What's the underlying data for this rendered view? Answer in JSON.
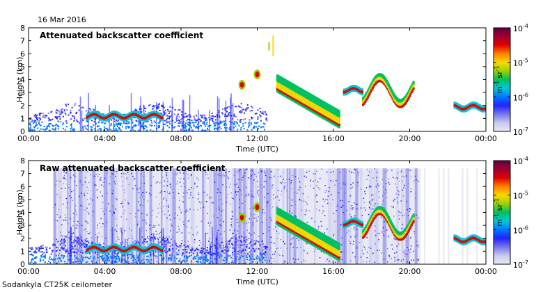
{
  "date": "16 Mar 2016",
  "footer": "Sodankyla CT25K ceilometer",
  "colors": {
    "colormap": [
      "#e9e9f5",
      "#c9c9ee",
      "#7777e8",
      "#2222ff",
      "#0077ff",
      "#00c8d8",
      "#00c060",
      "#9ad200",
      "#ffd800",
      "#ff8000",
      "#e00000",
      "#a00030",
      "#600040"
    ]
  },
  "chart_data": [
    {
      "type": "heatmap",
      "title": "Attenuated backscatter coefficient",
      "xlabel": "Time (UTC)",
      "ylabel": "Height (km)",
      "xlim": [
        0,
        24
      ],
      "ylim": [
        0,
        8
      ],
      "x_ticks": [
        "00:00",
        "04:00",
        "08:00",
        "12:00",
        "16:00",
        "20:00",
        "00:00"
      ],
      "y_ticks": [
        "0",
        "1",
        "2",
        "3",
        "4",
        "5",
        "6",
        "7",
        "8"
      ],
      "colorbar": {
        "label_parts": [
          "m",
          "-1",
          " sr",
          "-1"
        ],
        "scale": "log",
        "range": [
          1e-07,
          0.0001
        ],
        "ticks": [
          {
            "base": "10",
            "exp": "-4"
          },
          {
            "base": "10",
            "exp": "-5"
          },
          {
            "base": "10",
            "exp": "-6"
          },
          {
            "base": "10",
            "exp": "-7"
          }
        ]
      },
      "features": [
        {
          "name": "boundary-layer-aerosol",
          "t_start": 0,
          "t_end": 12.5,
          "height_km": [
            0,
            2.2
          ],
          "level": "low"
        },
        {
          "name": "low-cloud-layer",
          "t_start": 3,
          "t_end": 7,
          "height_km": 1.2,
          "level": "high"
        },
        {
          "name": "cloud-11h",
          "time": 11.2,
          "height_km": 3.6,
          "level": "high"
        },
        {
          "name": "cloud-12h",
          "time": 12.0,
          "height_km": 4.4,
          "level": "high"
        },
        {
          "name": "precip-streak",
          "time": 12.8,
          "height_km": [
            5.8,
            7.4
          ],
          "level": "medium"
        },
        {
          "name": "descending-cloud",
          "t_start": 13,
          "t_end": 16.3,
          "height_km": [
            3.0,
            0.2
          ],
          "level": "high"
        },
        {
          "name": "cloud-17h",
          "t_start": 16.5,
          "t_end": 17.5,
          "height_km": 3.2,
          "level": "high"
        },
        {
          "name": "cloud-18-20h",
          "t_start": 17.5,
          "t_end": 20.2,
          "height_km": [
            1.8,
            3.8
          ],
          "level": "high"
        },
        {
          "name": "cloud-23h",
          "t_start": 22.3,
          "t_end": 24,
          "height_km": 1.9,
          "level": "high"
        }
      ]
    },
    {
      "type": "heatmap",
      "title": "Raw attenuated backscatter coefficient",
      "xlabel": "Time (UTC)",
      "ylabel": "Height (km)",
      "xlim": [
        0,
        24
      ],
      "ylim": [
        0,
        8
      ],
      "x_ticks": [
        "00:00",
        "04:00",
        "08:00",
        "12:00",
        "16:00",
        "20:00",
        "00:00"
      ],
      "y_ticks": [
        "0",
        "1",
        "2",
        "3",
        "4",
        "5",
        "6",
        "7",
        "8"
      ],
      "colorbar": {
        "label_parts": [
          "m",
          "-1",
          " sr",
          "-1"
        ],
        "scale": "log",
        "range": [
          1e-07,
          0.0001
        ],
        "ticks": [
          {
            "base": "10",
            "exp": "-4"
          },
          {
            "base": "10",
            "exp": "-5"
          },
          {
            "base": "10",
            "exp": "-6"
          },
          {
            "base": "10",
            "exp": "-7"
          }
        ]
      },
      "noise_region": {
        "t_start": 1.3,
        "t_end": 20.5,
        "height_km": [
          0,
          7.4
        ]
      },
      "features": [
        {
          "name": "boundary-layer-aerosol",
          "t_start": 0,
          "t_end": 12.5,
          "height_km": [
            0,
            2.2
          ],
          "level": "low"
        },
        {
          "name": "low-cloud-layer",
          "t_start": 3,
          "t_end": 7,
          "height_km": 1.2,
          "level": "high"
        },
        {
          "name": "cloud-11h",
          "time": 11.2,
          "height_km": 3.6,
          "level": "high"
        },
        {
          "name": "cloud-12h",
          "time": 12.0,
          "height_km": 4.4,
          "level": "high"
        },
        {
          "name": "descending-cloud",
          "t_start": 13,
          "t_end": 16.3,
          "height_km": [
            3.0,
            0.2
          ],
          "level": "high"
        },
        {
          "name": "cloud-17h",
          "t_start": 16.5,
          "t_end": 17.5,
          "height_km": 3.2,
          "level": "high"
        },
        {
          "name": "cloud-18-20h",
          "t_start": 17.5,
          "t_end": 20.2,
          "height_km": [
            1.8,
            3.8
          ],
          "level": "high"
        },
        {
          "name": "cloud-23h",
          "t_start": 22.3,
          "t_end": 24,
          "height_km": 1.9,
          "level": "high"
        }
      ]
    }
  ]
}
